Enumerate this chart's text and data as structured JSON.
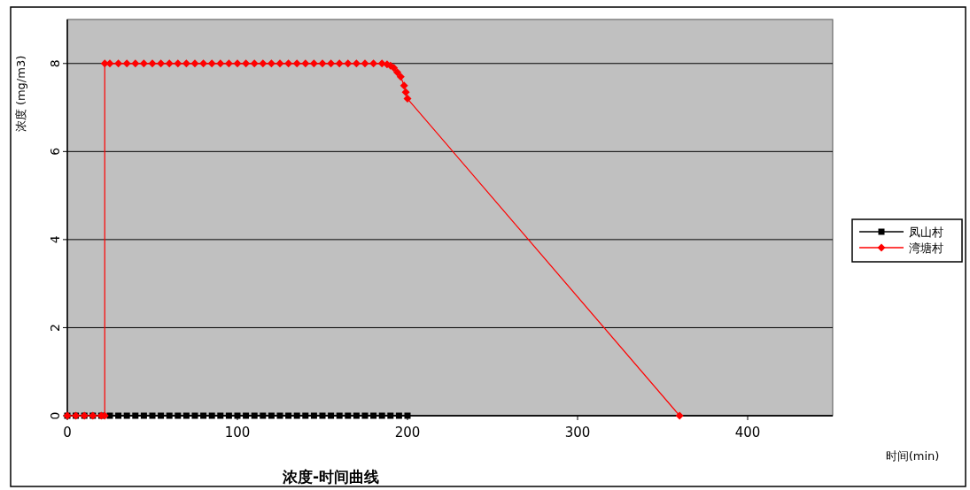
{
  "chart_data": {
    "type": "line",
    "title": "浓度-时间曲线",
    "xlabel": "时间(min)",
    "ylabel": "浓度 (mg/m3)",
    "xlim": [
      0,
      450
    ],
    "ylim": [
      0,
      9
    ],
    "xticks": [
      0,
      100,
      200,
      300,
      400
    ],
    "yticks": [
      0,
      2,
      4,
      6,
      8
    ],
    "grid": "y",
    "legend": "right",
    "series": [
      {
        "name": "凤山村",
        "color": "#000000",
        "marker": "square",
        "x": [
          0,
          5,
          10,
          15,
          20,
          25,
          30,
          35,
          40,
          45,
          50,
          55,
          60,
          65,
          70,
          75,
          80,
          85,
          90,
          95,
          100,
          105,
          110,
          115,
          120,
          125,
          130,
          135,
          140,
          145,
          150,
          155,
          160,
          165,
          170,
          175,
          180,
          185,
          190,
          195,
          200
        ],
        "values": [
          0,
          0,
          0,
          0,
          0,
          0,
          0,
          0,
          0,
          0,
          0,
          0,
          0,
          0,
          0,
          0,
          0,
          0,
          0,
          0,
          0,
          0,
          0,
          0,
          0,
          0,
          0,
          0,
          0,
          0,
          0,
          0,
          0,
          0,
          0,
          0,
          0,
          0,
          0,
          0,
          0
        ]
      },
      {
        "name": "湾塘村",
        "color": "#ff0000",
        "marker": "diamond",
        "x": [
          0,
          5,
          10,
          15,
          20,
          22,
          22,
          25,
          30,
          35,
          40,
          45,
          50,
          55,
          60,
          65,
          70,
          75,
          80,
          85,
          90,
          95,
          100,
          105,
          110,
          115,
          120,
          125,
          130,
          135,
          140,
          145,
          150,
          155,
          160,
          165,
          170,
          175,
          180,
          185,
          188,
          190,
          192,
          194,
          196,
          198,
          199,
          200,
          360
        ],
        "values": [
          0,
          0,
          0,
          0,
          0,
          0,
          8,
          8,
          8,
          8,
          8,
          8,
          8,
          8,
          8,
          8,
          8,
          8,
          8,
          8,
          8,
          8,
          8,
          8,
          8,
          8,
          8,
          8,
          8,
          8,
          8,
          8,
          8,
          8,
          8,
          8,
          8,
          8,
          8,
          8,
          7.98,
          7.95,
          7.9,
          7.8,
          7.7,
          7.5,
          7.35,
          7.2,
          0
        ]
      }
    ]
  }
}
